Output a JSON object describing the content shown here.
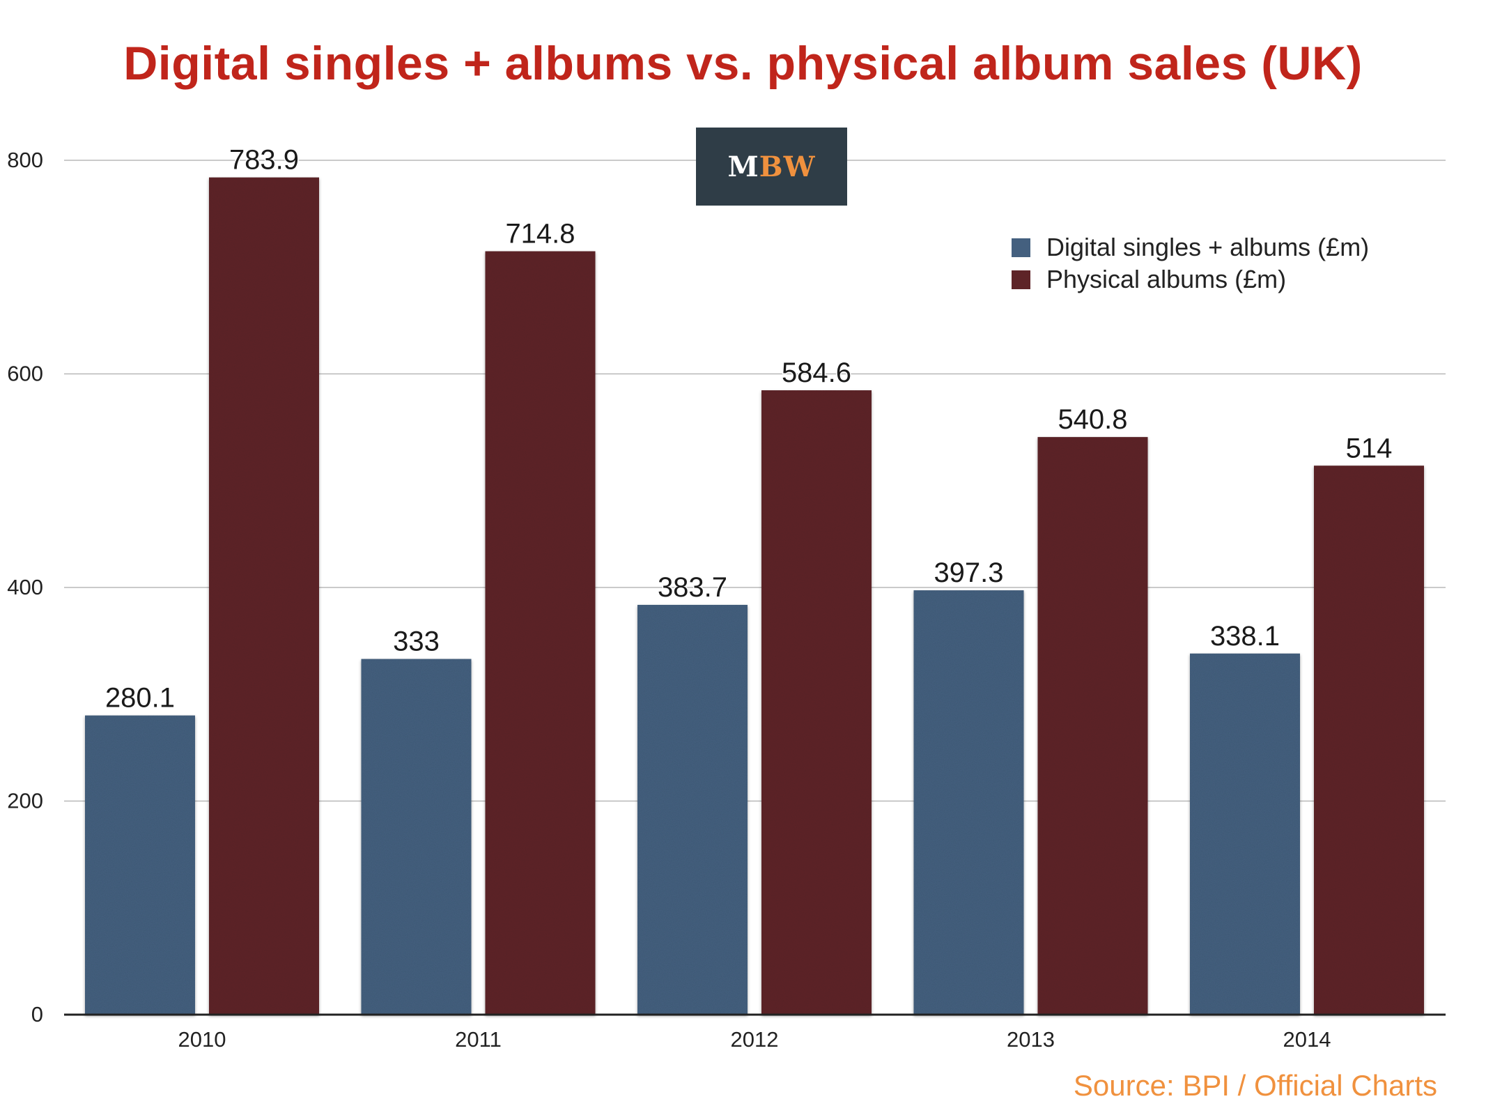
{
  "colors": {
    "title": "#c0251b",
    "digital": "#44607f",
    "physical": "#5e2428",
    "grid": "#b8b8b8",
    "axis": "#222222",
    "source": "#f0913e",
    "logo_white": "#ffffff",
    "logo_orange": "#f0913e"
  },
  "logo": {
    "text_m": "M",
    "text_bw": "BW"
  },
  "source": "Source: BPI / Official Charts",
  "chart_data": {
    "type": "bar",
    "title": "Digital singles + albums vs. physical album sales (UK)",
    "xlabel": "",
    "ylabel": "",
    "categories": [
      "2010",
      "2011",
      "2012",
      "2013",
      "2014"
    ],
    "series": [
      {
        "name": "Digital singles + albums (£m)",
        "values": [
          280.1,
          333,
          383.7,
          397.3,
          338.1
        ],
        "labels": [
          "280.1",
          "333",
          "383.7",
          "397.3",
          "338.1"
        ]
      },
      {
        "name": "Physical albums (£m)",
        "values": [
          783.9,
          714.8,
          584.6,
          540.8,
          514
        ],
        "labels": [
          "783.9",
          "714.8",
          "584.6",
          "540.8",
          "514"
        ]
      }
    ],
    "ylim": [
      0,
      800
    ],
    "yticks": [
      0,
      200,
      400,
      600,
      800
    ],
    "ytick_labels": [
      "0",
      "200",
      "400",
      "600",
      "800"
    ],
    "grid": true,
    "legend_position": "top-right",
    "data_labels": true
  }
}
